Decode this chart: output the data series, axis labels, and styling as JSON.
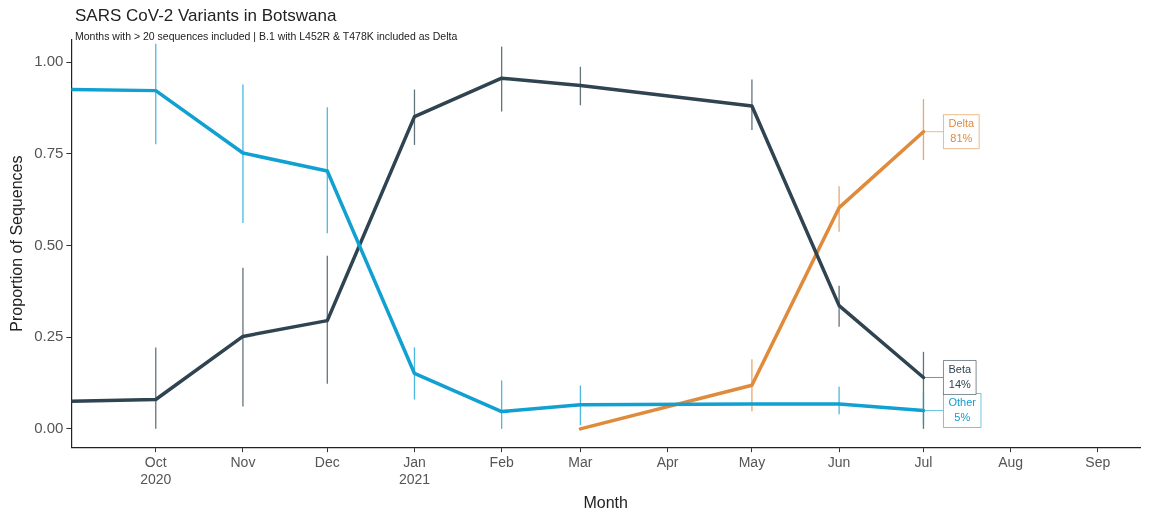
{
  "chart_data": {
    "type": "line",
    "title": "SARS CoV-2 Variants in Botswana",
    "subtitle": "Months with > 20 sequences included | B.1 with L452R & T478K included as Delta",
    "xlabel": "Month",
    "ylabel": "Proportion of Sequences",
    "xlim": [
      "2020-09",
      "2021-09-16"
    ],
    "xticks": [
      {
        "value": "2020-10",
        "label": "Oct\n2020"
      },
      {
        "value": "2020-11",
        "label": "Nov"
      },
      {
        "value": "2020-12",
        "label": "Dec"
      },
      {
        "value": "2021-01",
        "label": "Jan\n2021"
      },
      {
        "value": "2021-02",
        "label": "Feb"
      },
      {
        "value": "2021-03",
        "label": "Mar"
      },
      {
        "value": "2021-04",
        "label": "Apr"
      },
      {
        "value": "2021-05",
        "label": "May"
      },
      {
        "value": "2021-06",
        "label": "Jun"
      },
      {
        "value": "2021-07",
        "label": "Jul"
      },
      {
        "value": "2021-08",
        "label": "Aug"
      },
      {
        "value": "2021-09",
        "label": "Sep"
      }
    ],
    "ylim": [
      -0.05,
      1.06
    ],
    "yticks": [
      {
        "value": 0,
        "label": "0.00"
      },
      {
        "value": 0.25,
        "label": "0.25"
      },
      {
        "value": 0.5,
        "label": "0.50"
      },
      {
        "value": 0.75,
        "label": "0.75"
      },
      {
        "value": 1,
        "label": "1.00"
      }
    ],
    "grid": false,
    "legend": false,
    "marker": "none",
    "line_style": "solid",
    "series": [
      {
        "name": "Other",
        "color": "#10a0d2",
        "x": [
          "2020-09",
          "2020-10",
          "2020-11",
          "2020-12",
          "2021-01",
          "2021-02",
          "2021-03",
          "2021-05",
          "2021-06",
          "2021-07"
        ],
        "values": [
          0.925,
          0.922,
          0.752,
          0.703,
          0.151,
          0.047,
          0.066,
          0.068,
          0.068,
          0.05
        ],
        "errors": [
          null,
          [
            0.776,
            1.05
          ],
          [
            0.561,
            0.939
          ],
          [
            0.533,
            0.877
          ],
          [
            0.08,
            0.222
          ],
          [
            0,
            0.132
          ],
          [
            0.01,
            0.118
          ],
          null,
          [
            0.04,
            0.115
          ],
          [
            0.012,
            0.1
          ]
        ],
        "value_labels": [
          null,
          null,
          null,
          null,
          null,
          null,
          null,
          null,
          null,
          "5%"
        ]
      },
      {
        "name": "Beta",
        "color": "#2f4450",
        "x": [
          "2020-09",
          "2020-10",
          "2020-11",
          "2020-12",
          "2021-01",
          "2021-02",
          "2021-03",
          "2021-05",
          "2021-06",
          "2021-07"
        ],
        "values": [
          0.075,
          0.08,
          0.252,
          0.295,
          0.851,
          0.956,
          0.936,
          0.88,
          0.336,
          0.14
        ],
        "errors": [
          null,
          [
            0,
            0.222
          ],
          [
            0.061,
            0.439
          ],
          [
            0.123,
            0.472
          ],
          [
            0.774,
            0.925
          ],
          [
            0.865,
            1.042
          ],
          [
            0.882,
            0.987
          ],
          [
            0.815,
            0.952
          ],
          [
            0.278,
            0.39
          ],
          [
            0,
            0.21
          ]
        ],
        "value_labels": [
          null,
          null,
          null,
          null,
          null,
          null,
          null,
          null,
          null,
          "14%"
        ]
      },
      {
        "name": "Delta",
        "color": "#e08a3c",
        "x": [
          "2021-03",
          "2021-05",
          "2021-06",
          "2021-07"
        ],
        "values": [
          0,
          0.119,
          0.603,
          0.81
        ],
        "errors": [
          null,
          [
            0.048,
            0.19
          ],
          [
            0.537,
            0.661
          ],
          [
            0.733,
            0.899
          ]
        ],
        "value_labels": [
          null,
          null,
          null,
          "81%"
        ]
      }
    ]
  }
}
